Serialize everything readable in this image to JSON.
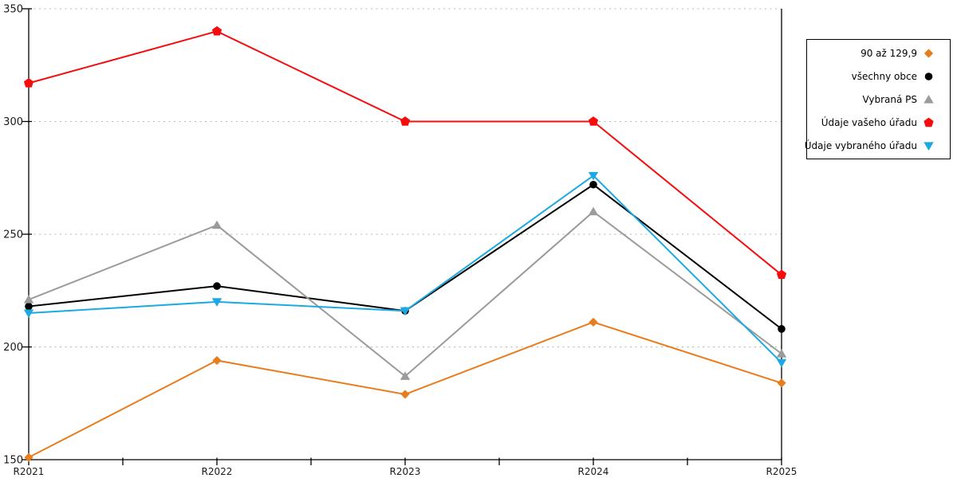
{
  "chart_data": {
    "type": "line",
    "categories": [
      "R2021",
      "R2022",
      "R2023",
      "R2024",
      "R2025"
    ],
    "series": [
      {
        "name": "90 až 129,9",
        "marker": "diamond",
        "color": "#E87D1E",
        "values": [
          151,
          194,
          179,
          211,
          184
        ]
      },
      {
        "name": "všechny obce",
        "marker": "circle",
        "color": "#000000",
        "values": [
          218,
          227,
          216,
          272,
          208
        ]
      },
      {
        "name": "Vybraná PS",
        "marker": "triangle-up",
        "color": "#9B9B9B",
        "values": [
          221,
          254,
          187,
          260,
          197
        ]
      },
      {
        "name": "Údaje vašeho úřadu",
        "marker": "pentagon",
        "color": "#F50D0D",
        "values": [
          317,
          340,
          300,
          300,
          232
        ]
      },
      {
        "name": "Údaje vybraného úřadu",
        "marker": "triangle-down",
        "color": "#1BA9E4",
        "values": [
          215,
          220,
          216,
          276,
          193
        ]
      }
    ],
    "title": "",
    "xlabel": "",
    "ylabel": "",
    "ylim": [
      150,
      350
    ],
    "yticks": [
      150,
      200,
      250,
      300,
      350
    ],
    "grid": "horizontal-dashed",
    "x_minor_ticks": true,
    "legend_position": "outside-right-boxed"
  },
  "colors": {
    "background": "#FFFFFF",
    "axis": "#000000",
    "grid": "#B5B5B5",
    "tick_label": "#1A1A1A",
    "legend_border": "#000000"
  }
}
